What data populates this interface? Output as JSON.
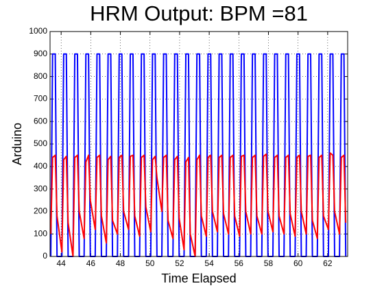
{
  "chart_data": {
    "type": "line",
    "title": "HRM Output: BPM =81",
    "x_label": "Time Elapsed",
    "y_label": "Arduino",
    "x": [
      43.3,
      43.42,
      43.6,
      43.72,
      44.05,
      44.17,
      44.35,
      44.47,
      44.8,
      44.92,
      45.1,
      45.22,
      45.55,
      45.67,
      45.85,
      45.97,
      46.3,
      46.42,
      46.6,
      46.72,
      47.05,
      47.17,
      47.35,
      47.47,
      47.8,
      47.92,
      48.1,
      48.22,
      48.55,
      48.67,
      48.85,
      48.97,
      49.3,
      49.42,
      49.6,
      49.72,
      50.05,
      50.17,
      50.35,
      50.47,
      50.8,
      50.92,
      51.1,
      51.22,
      51.55,
      51.67,
      51.85,
      51.97,
      52.3,
      52.42,
      52.6,
      52.72,
      53.05,
      53.17,
      53.35,
      53.47,
      53.8,
      53.92,
      54.1,
      54.22,
      54.55,
      54.67,
      54.85,
      54.97,
      55.3,
      55.42,
      55.6,
      55.72,
      56.05,
      56.17,
      56.35,
      56.47,
      56.8,
      56.92,
      57.1,
      57.22,
      57.55,
      57.67,
      57.85,
      57.97,
      58.3,
      58.42,
      58.6,
      58.72,
      59.05,
      59.17,
      59.35,
      59.47,
      59.8,
      59.92,
      60.1,
      60.22,
      60.55,
      60.67,
      60.85,
      60.97,
      61.3,
      61.42,
      61.6,
      61.72,
      62.05,
      62.17,
      62.35,
      62.47,
      62.8,
      62.92,
      63.1,
      63.22
    ],
    "series": [
      {
        "color": "#0000ff",
        "values": [
          0,
          900,
          900,
          0,
          0,
          900,
          900,
          0,
          0,
          900,
          900,
          0,
          0,
          900,
          900,
          0,
          0,
          900,
          900,
          0,
          0,
          900,
          900,
          0,
          0,
          900,
          900,
          0,
          0,
          900,
          900,
          0,
          0,
          900,
          900,
          0,
          0,
          900,
          900,
          0,
          0,
          900,
          900,
          0,
          0,
          900,
          900,
          0,
          0,
          900,
          900,
          0,
          0,
          900,
          900,
          0,
          0,
          900,
          900,
          0,
          0,
          900,
          900,
          0,
          0,
          900,
          900,
          0,
          0,
          900,
          900,
          0,
          0,
          900,
          900,
          0,
          0,
          900,
          900,
          0,
          0,
          900,
          900,
          0,
          0,
          900,
          900,
          0,
          0,
          900,
          900,
          0,
          0,
          900,
          900,
          0,
          0,
          900,
          900,
          0,
          0,
          900,
          900,
          0,
          0,
          900,
          900,
          0
        ]
      },
      {
        "color": "#ff0000",
        "values": [
          100,
          440,
          450,
          180,
          20,
          430,
          445,
          150,
          0,
          440,
          450,
          200,
          80,
          420,
          450,
          250,
          120,
          440,
          450,
          180,
          60,
          430,
          445,
          160,
          100,
          440,
          450,
          200,
          120,
          445,
          450,
          180,
          90,
          440,
          450,
          220,
          110,
          430,
          445,
          350,
          200,
          440,
          450,
          160,
          80,
          430,
          445,
          170,
          30,
          420,
          440,
          100,
          0,
          430,
          450,
          180,
          90,
          440,
          450,
          200,
          110,
          440,
          450,
          190,
          100,
          440,
          450,
          180,
          90,
          445,
          450,
          200,
          100,
          440,
          450,
          180,
          100,
          445,
          455,
          200,
          110,
          440,
          450,
          180,
          100,
          440,
          450,
          190,
          90,
          440,
          450,
          200,
          100,
          445,
          450,
          160,
          80,
          440,
          450,
          180,
          120,
          460,
          450,
          200,
          100,
          440,
          450,
          150
        ]
      }
    ],
    "xlim": [
      43.25,
      63.35
    ],
    "xticks": [
      44,
      46,
      48,
      50,
      52,
      54,
      56,
      58,
      60,
      62
    ],
    "ylim": [
      0,
      1000
    ],
    "yticks": [
      0,
      100,
      200,
      300,
      400,
      500,
      600,
      700,
      800,
      900,
      1000
    ],
    "grid": true
  }
}
